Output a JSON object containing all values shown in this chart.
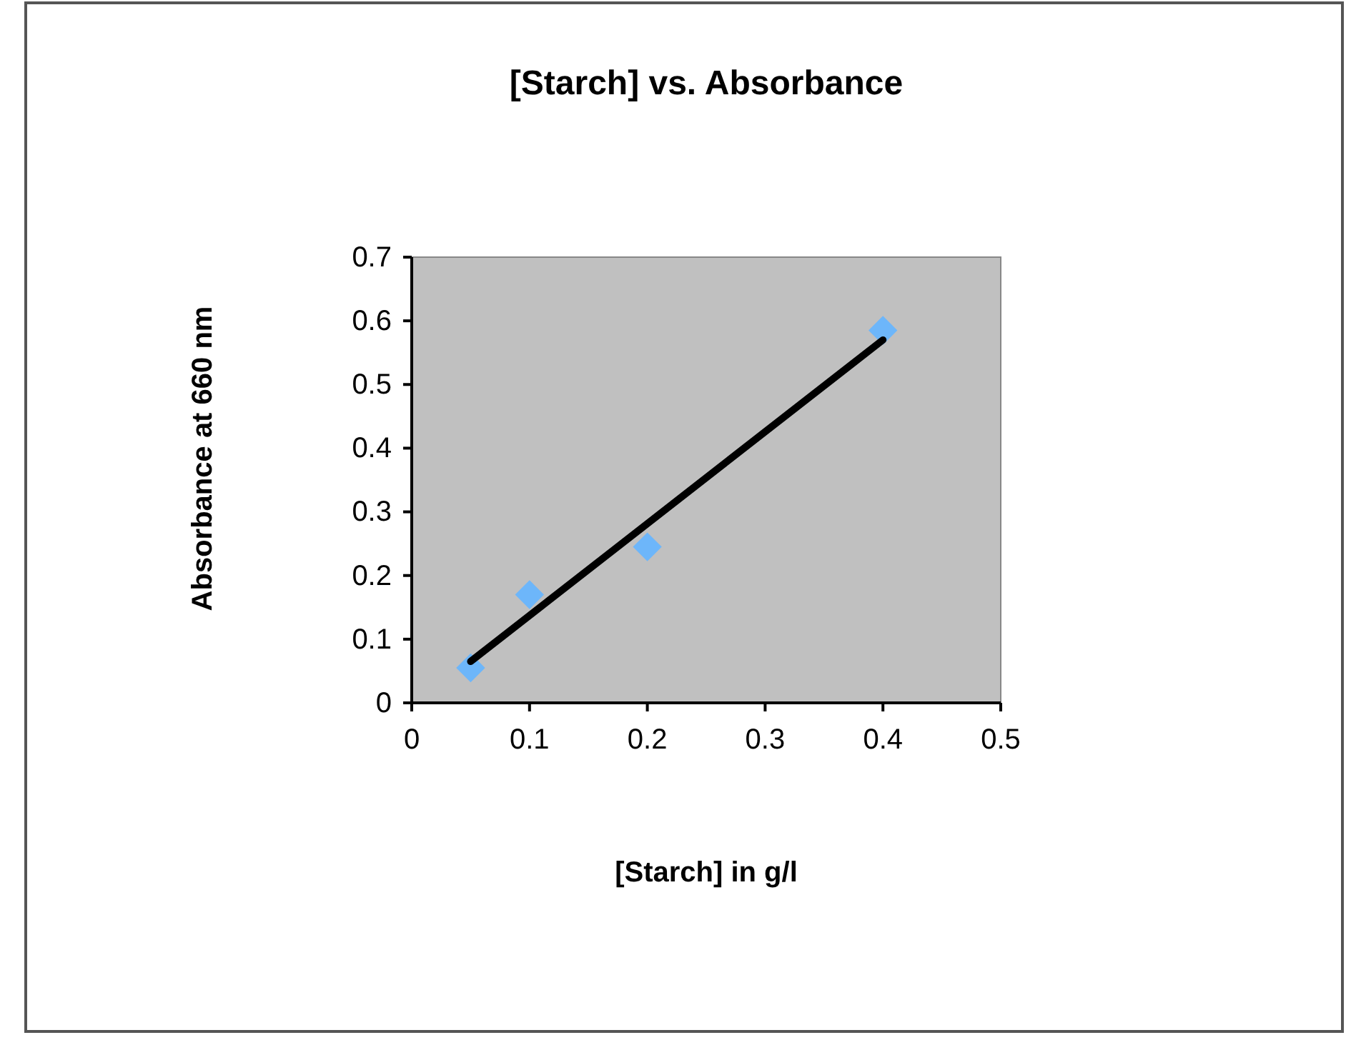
{
  "chart_data": {
    "type": "scatter",
    "title": "[Starch] vs. Absorbance",
    "xlabel": "[Starch] in g/l",
    "ylabel": "Absorbance at 660 nm",
    "xlim": [
      0,
      0.5
    ],
    "xticks": [
      0,
      0.1,
      0.2,
      0.3,
      0.4,
      0.5
    ],
    "ylim": [
      0,
      0.7
    ],
    "yticks": [
      0,
      0.1,
      0.2,
      0.3,
      0.4,
      0.5,
      0.6,
      0.7
    ],
    "series": [
      {
        "color": "#6db6fa",
        "marker": "diamond",
        "x": [
          0.05,
          0.1,
          0.2,
          0.4
        ],
        "values": [
          0.055,
          0.17,
          0.245,
          0.585
        ]
      },
      {
        "type": "line",
        "marker": "none",
        "color": "#000000",
        "x": [
          0.05,
          0.4
        ],
        "values": [
          0.065,
          0.57
        ]
      }
    ]
  }
}
